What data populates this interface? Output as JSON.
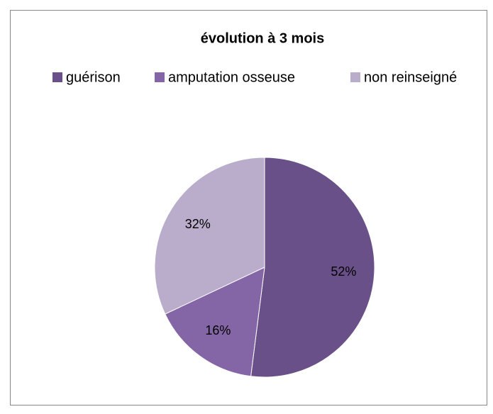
{
  "chart_data": {
    "type": "pie",
    "title": "évolution à 3 mois",
    "categories": [
      "guérison",
      "amputation osseuse",
      "non reinseigné"
    ],
    "values": [
      52,
      16,
      32
    ],
    "value_labels": [
      "52%",
      "16%",
      "32%"
    ],
    "colors": [
      "#6a5089",
      "#8466a6",
      "#b9adcb"
    ]
  }
}
